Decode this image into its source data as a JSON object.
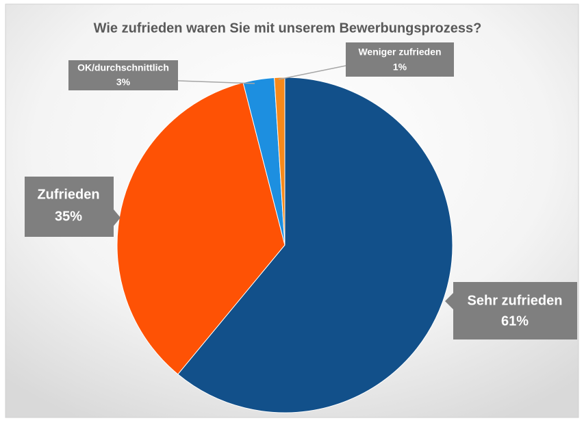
{
  "chart_data": {
    "type": "pie",
    "title": "Wie zufrieden waren Sie mit unserem Bewerbungsprozess?",
    "categories": [
      "Sehr zufrieden",
      "Zufrieden",
      "OK/durchschnittlich",
      "Weniger zufrieden"
    ],
    "values": [
      61,
      35,
      3,
      1
    ],
    "value_labels": [
      "61%",
      "35%",
      "3%",
      "1%"
    ],
    "colors": [
      "#12508a",
      "#fe5205",
      "#1d8fe0",
      "#f7891a"
    ]
  }
}
